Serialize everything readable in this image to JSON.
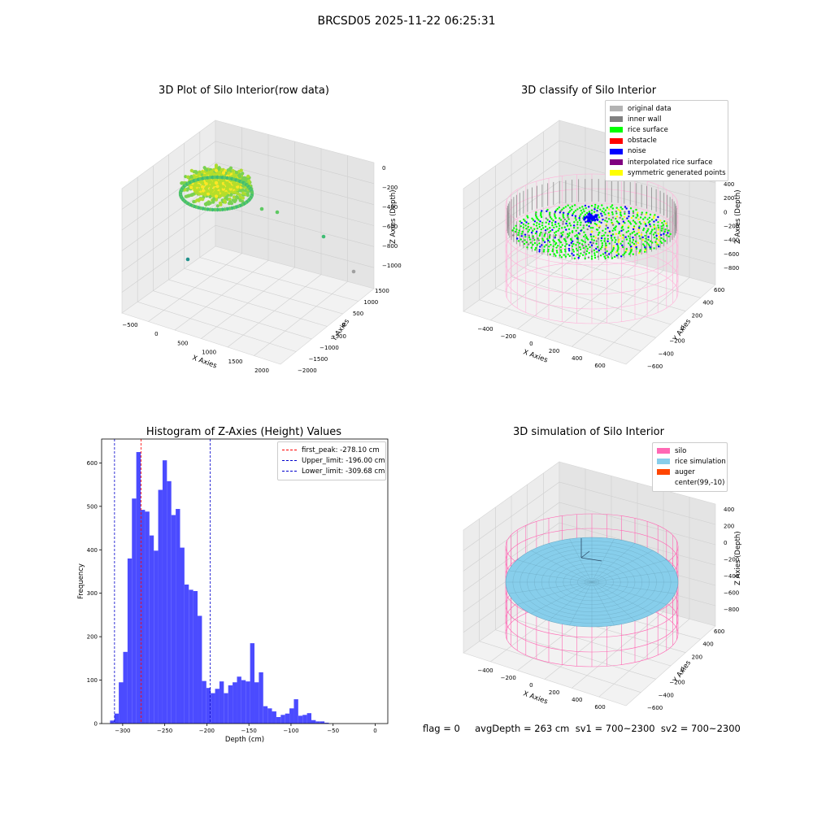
{
  "suptitle": "BRCSD05 2025-11-22 06:25:31",
  "panels": {
    "raw": {
      "title": "3D Plot of Silo Interior(row data)",
      "xlabel": "X Axies",
      "ylabel": "Y Axies",
      "zlabel": "Z Axies (Depth)",
      "xticks": [
        "−500",
        "0",
        "500",
        "1000",
        "1500",
        "2000"
      ],
      "yticks": [
        "1500",
        "1000",
        "500",
        "0",
        "−500",
        "−1000",
        "−1500",
        "−2000"
      ],
      "zticks": [
        "0",
        "−200",
        "−400",
        "−600",
        "−800",
        "−1000"
      ]
    },
    "classify": {
      "title": "3D classify of Silo Interior",
      "xlabel": "X Axies",
      "ylabel": "Y Axies",
      "zlabel": "Z Axies (Depth)",
      "xticks": [
        "−400",
        "−200",
        "0",
        "200",
        "400",
        "600"
      ],
      "yticks": [
        "600",
        "400",
        "200",
        "0",
        "−200",
        "−400",
        "−600"
      ],
      "zticks": [
        "400",
        "200",
        "0",
        "−200",
        "−400",
        "−600",
        "−800"
      ],
      "legend": [
        {
          "label": "original data",
          "color": "#b3b3b3"
        },
        {
          "label": "inner wall",
          "color": "#808080"
        },
        {
          "label": "rice surface",
          "color": "#00ff00"
        },
        {
          "label": "obstacle",
          "color": "#ff0000"
        },
        {
          "label": "noise",
          "color": "#0000ff"
        },
        {
          "label": "interpolated rice surface",
          "color": "#800080"
        },
        {
          "label": "symmetric generated points",
          "color": "#ffff00"
        }
      ]
    },
    "histogram": {
      "title": "Histogram of Z-Axies (Height) Values",
      "legend": [
        {
          "label": "first_peak: -278.10 cm",
          "color": "#ff0000"
        },
        {
          "label": "Upper_limit: -196.00 cm",
          "color": "#0000cc"
        },
        {
          "label": "Lower_limit: -309.68 cm",
          "color": "#0000cc"
        }
      ]
    },
    "simulation": {
      "title": "3D simulation of Silo Interior",
      "xlabel": "X Axies",
      "ylabel": "Y Axies",
      "zlabel": "Z Axies (Depth)",
      "xticks": [
        "−400",
        "−200",
        "0",
        "200",
        "400",
        "600"
      ],
      "yticks": [
        "600",
        "400",
        "200",
        "0",
        "−200",
        "−400",
        "−600"
      ],
      "zticks": [
        "400",
        "200",
        "0",
        "−200",
        "−400",
        "−600",
        "−800"
      ],
      "legend": [
        {
          "label": "silo",
          "color": "#ff69b4"
        },
        {
          "label": "rice simulation",
          "color": "#87ceeb"
        },
        {
          "label": "auger",
          "color": "#ff4500"
        },
        {
          "label": "center(99,-10)",
          "color": ""
        }
      ]
    }
  },
  "status": "flag = 0     avgDepth = 263 cm  sv1 = 700~2300  sv2 = 700~2300",
  "chart_data": {
    "type": "bar",
    "xlabel": "Depth (cm)",
    "ylabel": "Frequency",
    "xlim": [
      -325,
      15
    ],
    "ylim": [
      0,
      655
    ],
    "xticks": [
      -300,
      -250,
      -200,
      -150,
      -100,
      -50,
      0
    ],
    "yticks": [
      0,
      100,
      200,
      300,
      400,
      500,
      600
    ],
    "bin_width": 5.2,
    "bin_start": -315,
    "values": [
      7,
      23,
      95,
      165,
      380,
      518,
      625,
      492,
      488,
      433,
      398,
      538,
      606,
      558,
      480,
      494,
      405,
      320,
      308,
      305,
      248,
      98,
      82,
      70,
      80,
      97,
      70,
      88,
      95,
      108,
      100,
      97,
      185,
      95,
      118,
      40,
      35,
      28,
      15,
      20,
      23,
      35,
      56,
      18,
      20,
      24,
      8,
      5,
      5,
      2
    ],
    "vlines": [
      {
        "label": "first_peak: -278.10 cm",
        "x": -278.1,
        "color": "#ff0000"
      },
      {
        "label": "Upper_limit: -196.00 cm",
        "x": -196.0,
        "color": "#0000cc"
      },
      {
        "label": "Lower_limit: -309.68 cm",
        "x": -309.68,
        "color": "#0000cc"
      }
    ],
    "bar_color": "#4b4bff"
  }
}
